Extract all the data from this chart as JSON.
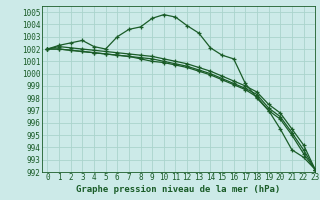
{
  "title": "Graphe pression niveau de la mer (hPa)",
  "bg_color": "#cceae8",
  "grid_color": "#aad4cc",
  "line_color": "#1a5c28",
  "xlim": [
    -0.5,
    23
  ],
  "ylim": [
    992,
    1005.5
  ],
  "xticks": [
    0,
    1,
    2,
    3,
    4,
    5,
    6,
    7,
    8,
    9,
    10,
    11,
    12,
    13,
    14,
    15,
    16,
    17,
    18,
    19,
    20,
    21,
    22,
    23
  ],
  "yticks": [
    992,
    993,
    994,
    995,
    996,
    997,
    998,
    999,
    1000,
    1001,
    1002,
    1003,
    1004,
    1005
  ],
  "series": [
    [
      1002.0,
      1002.3,
      1002.5,
      1002.7,
      1002.2,
      1002.0,
      1003.0,
      1003.6,
      1003.8,
      1004.5,
      1004.8,
      1004.6,
      1003.9,
      1003.3,
      1002.1,
      1001.5,
      1001.2,
      999.2,
      998.0,
      997.0,
      995.5,
      993.8,
      993.2,
      992.2
    ],
    [
      1002.0,
      1002.2,
      1002.1,
      1002.0,
      1001.9,
      1001.8,
      1001.7,
      1001.6,
      1001.5,
      1001.4,
      1001.2,
      1001.0,
      1000.8,
      1000.5,
      1000.2,
      999.8,
      999.4,
      999.0,
      998.5,
      997.5,
      996.8,
      995.5,
      994.2,
      992.2
    ],
    [
      1002.0,
      1002.0,
      1001.9,
      1001.8,
      1001.7,
      1001.6,
      1001.5,
      1001.4,
      1001.3,
      1001.2,
      1001.0,
      1000.8,
      1000.6,
      1000.3,
      1000.0,
      999.6,
      999.2,
      998.8,
      998.3,
      997.2,
      996.5,
      995.2,
      993.8,
      992.2
    ],
    [
      1002.0,
      1002.0,
      1001.9,
      1001.8,
      1001.7,
      1001.6,
      1001.5,
      1001.4,
      1001.2,
      1001.0,
      1000.9,
      1000.7,
      1000.5,
      1000.2,
      999.9,
      999.5,
      999.1,
      998.7,
      998.1,
      997.0,
      996.3,
      995.0,
      993.5,
      992.2
    ]
  ],
  "tick_fontsize": 5.5,
  "xlabel_fontsize": 6.5,
  "marker_size": 3.5,
  "linewidth": 0.9
}
